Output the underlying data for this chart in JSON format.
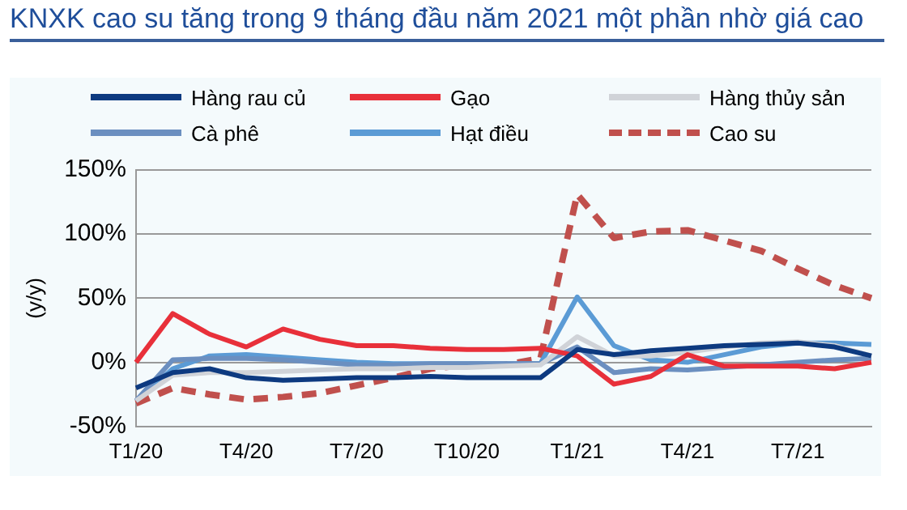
{
  "chart_data": {
    "type": "line",
    "title": "KNXK cao su tăng trong 9 tháng đầu năm 2021 một phần nhờ giá cao",
    "ylabel": "(y/y)",
    "categories": [
      "T1/20",
      null,
      null,
      "T4/20",
      null,
      null,
      "T7/20",
      null,
      null,
      "T10/20",
      null,
      null,
      "T1/21",
      null,
      null,
      "T4/21",
      null,
      null,
      "T7/21",
      null,
      null
    ],
    "series": [
      {
        "name": "Hàng rau củ",
        "color": "#0d3a80",
        "values": [
          -20,
          -8,
          -5,
          -12,
          -14,
          -13,
          -12,
          -12,
          -11,
          -12,
          -12,
          -12,
          10,
          6,
          9,
          11,
          13,
          14,
          15,
          12,
          5
        ]
      },
      {
        "name": "Gạo",
        "color": "#e8303a",
        "values": [
          0,
          38,
          22,
          12,
          26,
          18,
          13,
          13,
          11,
          10,
          10,
          11,
          5,
          -17,
          -11,
          6,
          -3,
          -3,
          -3,
          -5,
          0
        ]
      },
      {
        "name": "Hàng thủy sản",
        "color": "#d0d3d8",
        "values": [
          -30,
          -10,
          -8,
          -8,
          -7,
          -6,
          -5,
          -5,
          -4,
          -4,
          -3,
          -2,
          20,
          5,
          5,
          8,
          12,
          15,
          16,
          13,
          5
        ]
      },
      {
        "name": "Cà phê",
        "color": "#6b8fc0",
        "values": [
          -30,
          2,
          3,
          3,
          2,
          0,
          -2,
          -2,
          -1,
          -1,
          -1,
          -1,
          12,
          -8,
          -5,
          -6,
          -4,
          -2,
          0,
          2,
          3
        ]
      },
      {
        "name": "Hạt điều",
        "color": "#5b9bd5",
        "values": [
          -30,
          -5,
          5,
          6,
          4,
          2,
          0,
          -1,
          -1,
          -1,
          -1,
          -1,
          51,
          13,
          2,
          0,
          6,
          12,
          15,
          15,
          14
        ]
      },
      {
        "name": "Cao su",
        "color": "#c0504d",
        "line_style": "dashed",
        "values": [
          -32,
          -20,
          -25,
          -29,
          -27,
          -24,
          -18,
          -12,
          -5,
          -2,
          -2,
          3,
          131,
          97,
          102,
          103,
          95,
          87,
          73,
          60,
          50
        ]
      }
    ],
    "ylim": [
      -50,
      150
    ],
    "yticks": [
      {
        "value": -50,
        "label": "-50%"
      },
      {
        "value": 0,
        "label": "0%"
      },
      {
        "value": 50,
        "label": "50%"
      },
      {
        "value": 100,
        "label": "100%"
      },
      {
        "value": 150,
        "label": "150%"
      }
    ],
    "grid": "y",
    "legend": "top",
    "marker": "none"
  }
}
